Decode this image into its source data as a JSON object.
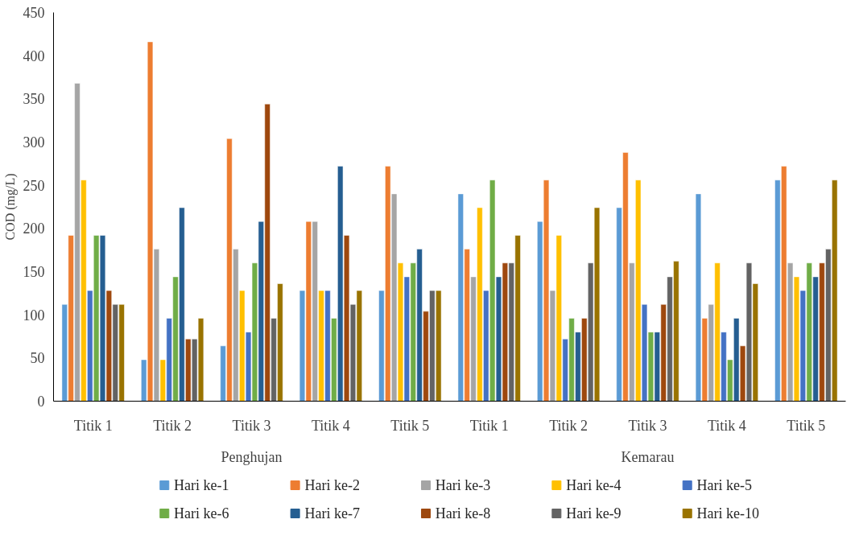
{
  "chart_data": {
    "type": "bar",
    "ylabel": "COD (mg/L)",
    "categories": [
      "Titik 1",
      "Titik 2",
      "Titik 3",
      "Titik 4",
      "Titik 5",
      "Titik 1",
      "Titik 2",
      "Titik 3",
      "Titik 4",
      "Titik 5"
    ],
    "annotations": [
      "Penghujan",
      "Kemarau"
    ],
    "ylim": [
      0,
      450
    ],
    "yticks": [
      0,
      50,
      100,
      150,
      200,
      250,
      300,
      350,
      400,
      450
    ],
    "grid": false,
    "legend": "bottom",
    "series": [
      {
        "name": "Hari ke-1",
        "color": "#5b9bd5",
        "values": [
          112,
          48,
          64,
          128,
          128,
          240,
          208,
          224,
          240,
          256
        ]
      },
      {
        "name": "Hari ke-2",
        "color": "#ed7d31",
        "values": [
          192,
          416,
          304,
          208,
          272,
          176,
          256,
          288,
          96,
          272
        ]
      },
      {
        "name": "Hari ke-3",
        "color": "#a5a5a5",
        "values": [
          368,
          176,
          176,
          208,
          240,
          144,
          128,
          160,
          112,
          160
        ]
      },
      {
        "name": "Hari ke-4",
        "color": "#ffc000",
        "values": [
          256,
          48,
          128,
          128,
          160,
          224,
          192,
          256,
          160,
          144
        ]
      },
      {
        "name": "Hari ke-5",
        "color": "#4472c4",
        "values": [
          128,
          96,
          80,
          128,
          144,
          128,
          72,
          112,
          80,
          128
        ]
      },
      {
        "name": "Hari ke-6",
        "color": "#70ad47",
        "values": [
          192,
          144,
          160,
          96,
          160,
          256,
          96,
          80,
          48,
          160
        ]
      },
      {
        "name": "Hari ke-7",
        "color": "#255e91",
        "values": [
          192,
          224,
          208,
          272,
          176,
          144,
          80,
          80,
          96,
          144
        ]
      },
      {
        "name": "Hari ke-8",
        "color": "#9e480e",
        "values": [
          128,
          72,
          344,
          192,
          104,
          160,
          96,
          112,
          64,
          160
        ]
      },
      {
        "name": "Hari ke-9",
        "color": "#636363",
        "values": [
          112,
          72,
          96,
          112,
          128,
          160,
          160,
          144,
          160,
          176
        ]
      },
      {
        "name": "Hari ke-10",
        "color": "#997300",
        "values": [
          112,
          96,
          136,
          128,
          128,
          192,
          224,
          162,
          136,
          256
        ]
      }
    ]
  }
}
